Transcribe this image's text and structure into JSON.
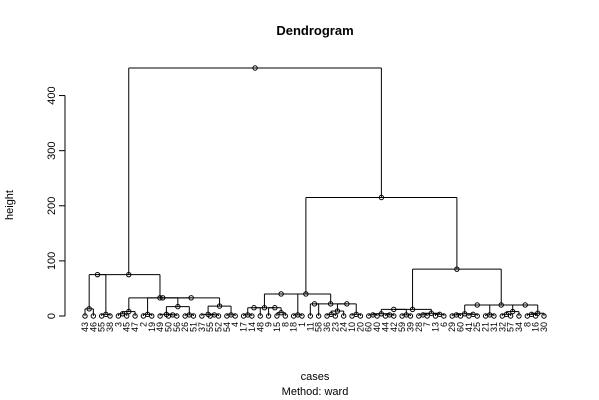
{
  "chart_data": {
    "type": "dendrogram",
    "title": "Dendrogram",
    "xlabel": "cases",
    "ylabel": "height",
    "subtitle": "Method:  ward",
    "ylim": [
      0,
      450
    ],
    "yticks": [
      0,
      100,
      200,
      300,
      400
    ],
    "leaves": [
      "43",
      "46",
      "55",
      "38",
      "3",
      "45",
      "47",
      "2",
      "19",
      "49",
      "50",
      "56",
      "26",
      "51",
      "37",
      "55",
      "52",
      "54",
      "4",
      "17",
      "14",
      "48",
      "9",
      "15",
      "8",
      "18",
      "1",
      "11",
      "58",
      "36",
      "23",
      "24",
      "10",
      "20",
      "60",
      "40",
      "44",
      "42",
      "59",
      "39",
      "28",
      "7",
      "13",
      "6",
      "29",
      "60",
      "41",
      "25",
      "21",
      "31",
      "32",
      "57",
      "34",
      "8",
      "16",
      "30"
    ],
    "merges": [
      {
        "id": "a1",
        "left": "L1",
        "right": "L2",
        "height": 13
      },
      {
        "id": "a2",
        "left": "L3",
        "right": "L4",
        "height": 3
      },
      {
        "id": "a",
        "left": "a1",
        "right": "a2",
        "height": 75
      },
      {
        "id": "b1",
        "left": "L5",
        "right": "L6",
        "height": 4
      },
      {
        "id": "b2",
        "left": "b1",
        "right": "L7",
        "height": 8
      },
      {
        "id": "b3",
        "left": "L8",
        "right": "L9",
        "height": 3
      },
      {
        "id": "b4",
        "left": "L11",
        "right": "L12",
        "height": 2
      },
      {
        "id": "b5",
        "left": "L10",
        "right": "b4",
        "height": 3
      },
      {
        "id": "b6",
        "left": "L13",
        "right": "L14",
        "height": 2
      },
      {
        "id": "b7",
        "left": "b5",
        "right": "b6",
        "height": 17
      },
      {
        "id": "b8",
        "left": "b3",
        "right": "b7",
        "height": 33
      },
      {
        "id": "b9",
        "left": "L16",
        "right": "L17",
        "height": 2
      },
      {
        "id": "b10",
        "left": "L15",
        "right": "b9",
        "height": 3
      },
      {
        "id": "b11",
        "left": "L18",
        "right": "L19",
        "height": 2
      },
      {
        "id": "b12",
        "left": "b10",
        "right": "b11",
        "height": 18
      },
      {
        "id": "b13",
        "left": "b8",
        "right": "b12",
        "height": 33
      },
      {
        "id": "b",
        "left": "b2",
        "right": "b13",
        "height": 33
      },
      {
        "id": "A",
        "left": "a",
        "right": "b",
        "height": 75
      },
      {
        "id": "c1",
        "left": "L20",
        "right": "L21",
        "height": 2
      },
      {
        "id": "c2",
        "left": "c1",
        "right": "L22",
        "height": 15
      },
      {
        "id": "c3",
        "left": "L24",
        "right": "L25",
        "height": 6
      },
      {
        "id": "c4",
        "left": "L23",
        "right": "c3",
        "height": 15
      },
      {
        "id": "c5",
        "left": "c2",
        "right": "c4",
        "height": 15
      },
      {
        "id": "c6",
        "left": "L26",
        "right": "L27",
        "height": 2
      },
      {
        "id": "c7",
        "left": "c5",
        "right": "c6",
        "height": 40
      },
      {
        "id": "d1",
        "left": "L28",
        "right": "L29",
        "height": 22
      },
      {
        "id": "d2",
        "left": "L30",
        "right": "L31",
        "height": 3
      },
      {
        "id": "d3",
        "left": "d2",
        "right": "L32",
        "height": 9
      },
      {
        "id": "d4",
        "left": "L33",
        "right": "L34",
        "height": 3
      },
      {
        "id": "d5",
        "left": "d3",
        "right": "d4",
        "height": 22
      },
      {
        "id": "d6",
        "left": "d1",
        "right": "d5",
        "height": 22
      },
      {
        "id": "C",
        "left": "c7",
        "right": "d6",
        "height": 40
      },
      {
        "id": "e1",
        "left": "L35",
        "right": "L36",
        "height": 2
      },
      {
        "id": "e2",
        "left": "L37",
        "right": "L38",
        "height": 2
      },
      {
        "id": "e3",
        "left": "e1",
        "right": "e2",
        "height": 4
      },
      {
        "id": "e4",
        "left": "L39",
        "right": "L40",
        "height": 2
      },
      {
        "id": "e5",
        "left": "e3",
        "right": "e4",
        "height": 12
      },
      {
        "id": "e6",
        "left": "L41",
        "right": "L42",
        "height": 2
      },
      {
        "id": "e7",
        "left": "L43",
        "right": "L44",
        "height": 3
      },
      {
        "id": "e8",
        "left": "e6",
        "right": "e7",
        "height": 5
      },
      {
        "id": "e9",
        "left": "e5",
        "right": "e8",
        "height": 12
      },
      {
        "id": "f1",
        "left": "L45",
        "right": "L46",
        "height": 2
      },
      {
        "id": "f2",
        "left": "L47",
        "right": "L48",
        "height": 3
      },
      {
        "id": "f3",
        "left": "f1",
        "right": "f2",
        "height": 4
      },
      {
        "id": "f4",
        "left": "L49",
        "right": "L50",
        "height": 2
      },
      {
        "id": "f5",
        "left": "f3",
        "right": "f4",
        "height": 20
      },
      {
        "id": "f6",
        "left": "L51",
        "right": "L52",
        "height": 3
      },
      {
        "id": "f7",
        "left": "f6",
        "right": "L53",
        "height": 8
      },
      {
        "id": "f8",
        "left": "L54",
        "right": "L55",
        "height": 3
      },
      {
        "id": "f9",
        "left": "f8",
        "right": "L56",
        "height": 5
      },
      {
        "id": "f10",
        "left": "f7",
        "right": "f9",
        "height": 20
      },
      {
        "id": "f11",
        "left": "f5",
        "right": "f10",
        "height": 20
      },
      {
        "id": "E",
        "left": "e9",
        "right": "f11",
        "height": 85
      },
      {
        "id": "D",
        "left": "C",
        "right": "E",
        "height": 215
      },
      {
        "id": "root",
        "left": "A",
        "right": "D",
        "height": 450
      }
    ]
  }
}
